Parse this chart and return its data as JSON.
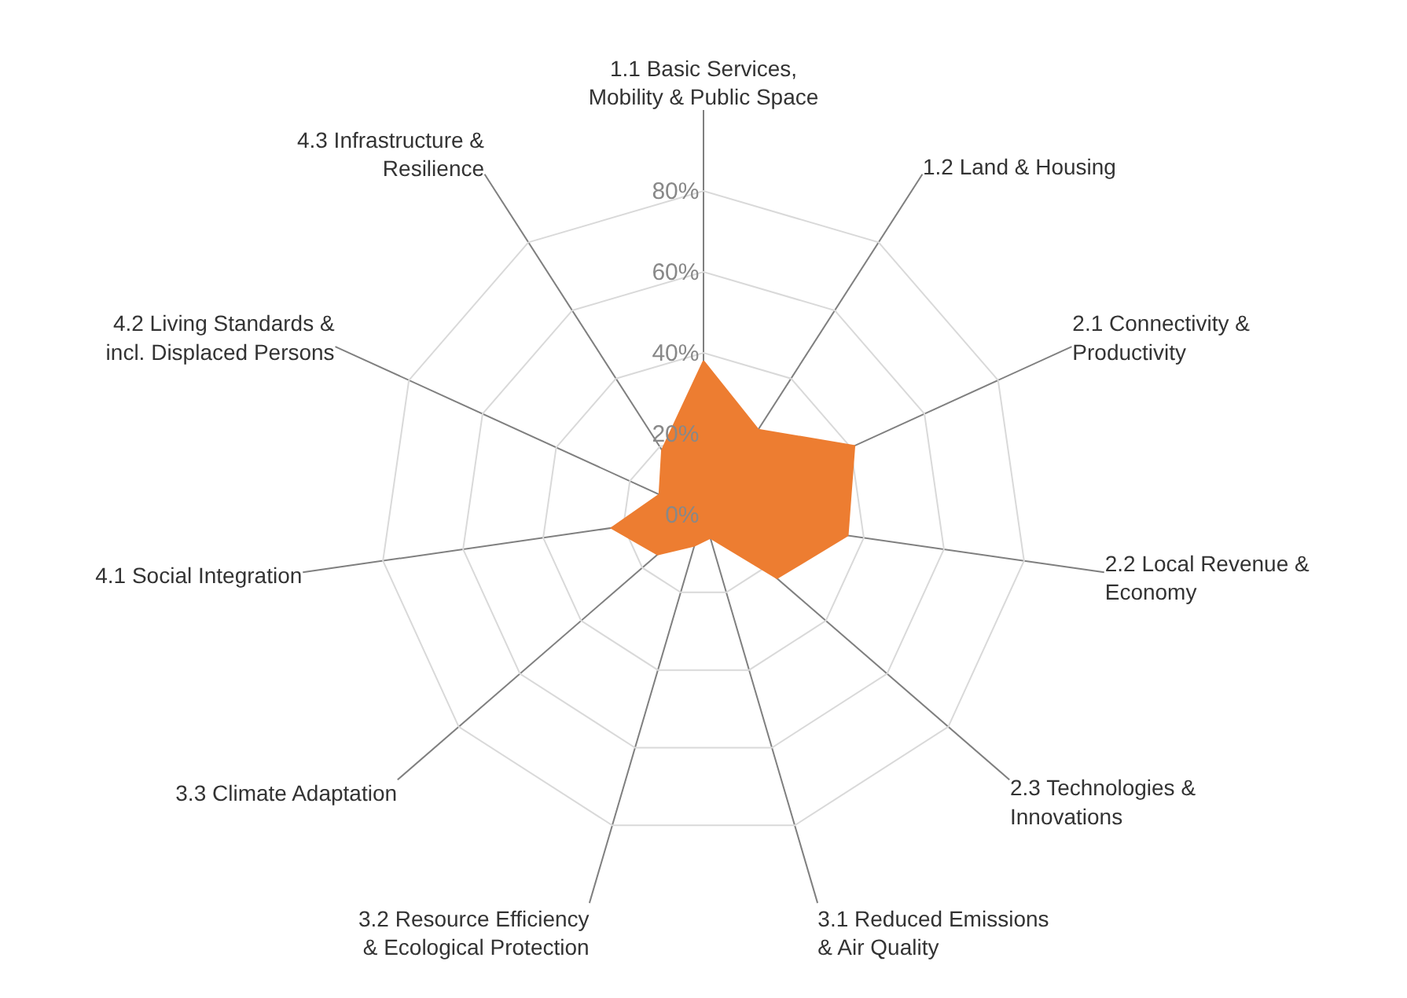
{
  "chart_data": {
    "type": "radar",
    "categories": [
      "1.1 Basic Services,\nMobility & Public Space",
      "1.2 Land & Housing",
      "2.1 Connectivity &\nProductivity",
      "2.2 Local Revenue &\nEconomy",
      "2.3 Technologies &\nInnovations",
      "3.1 Reduced Emissions\n& Air Quality",
      "3.2 Resource Efficiency\n& Ecological Protection",
      "3.3 Climate Adaptation",
      "4.1 Social Integration",
      "4.2 Living Standards &\nincl. Displaced Persons",
      "4.3 Infrastructure &\nResilience"
    ],
    "series": [
      {
        "color": "#ed7d31",
        "values": [
          38,
          25,
          41,
          36,
          24,
          6,
          8,
          15,
          23,
          12,
          19
        ]
      }
    ],
    "ylim": [
      0,
      100
    ],
    "yticks": [
      {
        "value": 0,
        "label": "0%"
      },
      {
        "value": 20,
        "label": "20%"
      },
      {
        "value": 40,
        "label": "40%"
      },
      {
        "value": 60,
        "label": "60%"
      },
      {
        "value": 80,
        "label": "80%"
      }
    ],
    "grid": true,
    "marker": "none"
  }
}
